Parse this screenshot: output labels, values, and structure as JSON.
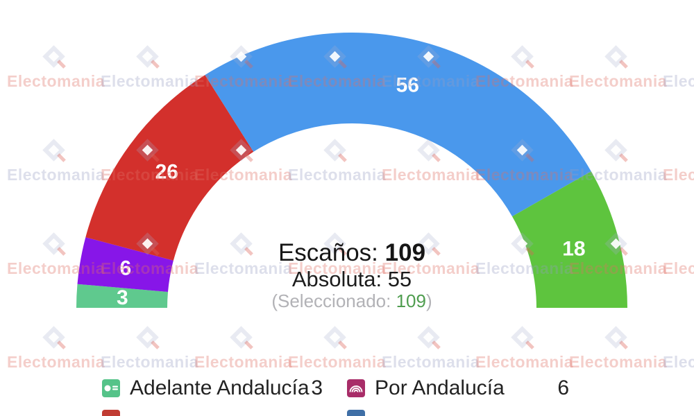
{
  "watermark": {
    "text": "Electomania"
  },
  "title_block": {
    "seats_label": "Escaños: ",
    "seats_value": "109",
    "majority_label": "Absoluta: ",
    "majority_value": "55",
    "selected_prefix": "(Seleccionado: ",
    "selected_value": "109",
    "selected_suffix": ")"
  },
  "chart_data": {
    "type": "pie",
    "variant": "hemicycle-half-donut",
    "title": "Escaños: 109",
    "subtitle": "Absoluta: 55",
    "annotation": "(Seleccionado: 109)",
    "total_seats": 109,
    "majority": 55,
    "selected": 109,
    "arc_degrees": 180,
    "slices": [
      {
        "label": "Adelante Andalucía",
        "value": 3,
        "color": "#5fc98e"
      },
      {
        "label": "Por Andalucía",
        "value": 6,
        "color": "#8716e8"
      },
      {
        "label": "",
        "value": 26,
        "color": "#d3302c"
      },
      {
        "label": "",
        "value": 56,
        "color": "#4a98ec"
      },
      {
        "label": "",
        "value": 18,
        "color": "#5ec43e"
      }
    ],
    "value_labels_shown": [
      "3",
      "6",
      "26",
      "56",
      "18"
    ],
    "legend_position": "bottom"
  },
  "legend": {
    "rows": [
      [
        {
          "label": "Adelante Andalucía",
          "value": "3",
          "color": "#55c389",
          "glyph": "adelante-logo",
          "name": "adelante-andalucia"
        },
        {
          "label": "Por Andalucía",
          "value": "6",
          "color": "#a82d68",
          "glyph": "rainbow-logo",
          "name": "por-andalucia"
        }
      ],
      [
        {
          "label": "",
          "value": "",
          "color": "#c13c33",
          "glyph": "none",
          "name": "red-party-clipped"
        },
        {
          "label": "",
          "value": "",
          "color": "#3f6fa6",
          "glyph": "none",
          "name": "blue-party-clipped"
        }
      ]
    ]
  }
}
